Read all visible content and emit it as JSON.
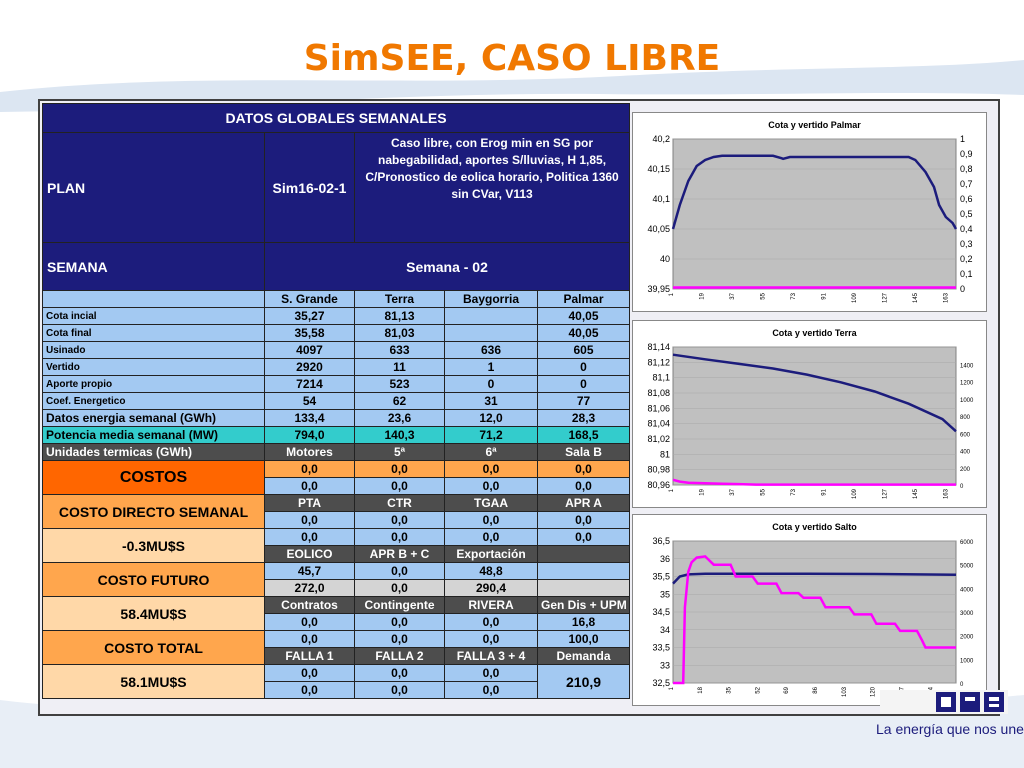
{
  "title": "SimSEE, CASO LIBRE",
  "table": {
    "header": "DATOS GLOBALES SEMANALES",
    "plan_label": "PLAN",
    "plan_value": "Sim16-02-1",
    "plan_desc": "Caso libre, con  Erog min en SG por nabegabilidad, aportes S/lluvias, H 1,85, C/Pronostico de eolica horario, Politica 1360 sin CVar, V113",
    "semana_label": "SEMANA",
    "semana_value": "Semana - 02",
    "columns": [
      "S. Grande",
      "Terra",
      "Baygorria",
      "Palmar"
    ],
    "rows": [
      {
        "label": "Cota incial",
        "values": [
          "35,27",
          "81,13",
          "",
          "40,05"
        ]
      },
      {
        "label": "Cota final",
        "values": [
          "35,58",
          "81,03",
          "",
          "40,05"
        ]
      },
      {
        "label": "Usinado",
        "values": [
          "4097",
          "633",
          "636",
          "605"
        ]
      },
      {
        "label": "Vertido",
        "values": [
          "2920",
          "11",
          "1",
          "0"
        ]
      },
      {
        "label": "Aporte propio",
        "values": [
          "7214",
          "523",
          "0",
          "0"
        ]
      },
      {
        "label": "Coef. Energetico",
        "values": [
          "54",
          "62",
          "31",
          "77"
        ]
      }
    ],
    "energia_label": "Datos energia semanal  (GWh)",
    "energia_values": [
      "133,4",
      "23,6",
      "12,0",
      "28,3"
    ],
    "potencia_label": "Potencia media semanal (MW)",
    "potencia_values": [
      "794,0",
      "140,3",
      "71,2",
      "168,5"
    ],
    "termicas_label": "Unidades termicas (GWh)",
    "termicas_cols": [
      "Motores",
      "5ª",
      "6ª",
      "Sala B"
    ],
    "termicas_r1": [
      "0,0",
      "0,0",
      "0,0",
      "0,0"
    ],
    "termicas_r2": [
      "0,0",
      "0,0",
      "0,0",
      "0,0"
    ],
    "costos_label": "COSTOS",
    "costo_directo_label": "COSTO DIRECTO SEMANAL",
    "costo_directo_value": "-0.3MU$S",
    "costo_futuro_label": "COSTO FUTURO",
    "costo_futuro_value": "58.4MU$S",
    "costo_total_label": "COSTO TOTAL",
    "costo_total_value": "58.1MU$S",
    "g1_cols": [
      "PTA",
      "CTR",
      "TGAA",
      "APR A"
    ],
    "g1_r1": [
      "0,0",
      "0,0",
      "0,0",
      "0,0"
    ],
    "g1_r2": [
      "0,0",
      "0,0",
      "0,0",
      "0,0"
    ],
    "g2_cols": [
      "EOLICO",
      "APR B + C",
      "Exportación",
      ""
    ],
    "g2_r1": [
      "45,7",
      "0,0",
      "48,8",
      ""
    ],
    "g2_r2": [
      "272,0",
      "0,0",
      "290,4",
      ""
    ],
    "g3_cols": [
      "Contratos",
      "Contingente",
      "RIVERA",
      "Gen Dis + UPM"
    ],
    "g3_r1": [
      "0,0",
      "0,0",
      "0,0",
      "16,8"
    ],
    "g3_r2": [
      "0,0",
      "0,0",
      "0,0",
      "100,0"
    ],
    "g4_cols": [
      "FALLA 1",
      "FALLA 2",
      "FALLA 3 + 4",
      "Demanda"
    ],
    "g4_r1": [
      "0,0",
      "0,0",
      "0,0"
    ],
    "g4_r2": [
      "0,0",
      "0,0",
      "0,0"
    ],
    "demanda_value": "210,9"
  },
  "chart_data": [
    {
      "type": "line",
      "title": "Cota y vertido  Palmar",
      "ylim": [
        39.95,
        40.2
      ],
      "yticks": [
        "40,2",
        "40,15",
        "40,1",
        "40,05",
        "40",
        "39,95"
      ],
      "y2lim": [
        0,
        1
      ],
      "y2ticks": [
        "1",
        "0,9",
        "0,8",
        "0,7",
        "0,6",
        "0,5",
        "0,4",
        "0,3",
        "0,2",
        "0,1",
        "0"
      ],
      "xticks": [
        "1",
        "19",
        "37",
        "55",
        "73",
        "91",
        "109",
        "127",
        "145",
        "163"
      ],
      "xmax": 168,
      "series": [
        {
          "color": "#1c1c7c",
          "axis": "left",
          "x": [
            1,
            5,
            10,
            15,
            20,
            25,
            30,
            38,
            45,
            60,
            65,
            66,
            70,
            80,
            100,
            120,
            140,
            144,
            150,
            155,
            158,
            162,
            166,
            168
          ],
          "y": [
            40.05,
            40.09,
            40.13,
            40.155,
            40.165,
            40.17,
            40.172,
            40.172,
            40.172,
            40.172,
            40.168,
            40.167,
            40.17,
            40.17,
            40.17,
            40.17,
            40.17,
            40.165,
            40.145,
            40.12,
            40.09,
            40.07,
            40.06,
            40.05
          ]
        },
        {
          "color": "#ff00ff",
          "axis": "right",
          "x": [
            1,
            168
          ],
          "y": [
            0.01,
            0.01
          ]
        }
      ]
    },
    {
      "type": "line",
      "title": "Cota y vertido  Terra",
      "ylim": [
        80.96,
        81.14
      ],
      "yticks": [
        "81,14",
        "81,12",
        "81,1",
        "81,08",
        "81,06",
        "81,04",
        "81,02",
        "81",
        "80,98",
        "80,96"
      ],
      "y2lim": [
        0,
        1600
      ],
      "y2ticks": [
        "1400",
        "1200",
        "1000",
        "800",
        "600",
        "400",
        "200",
        "0"
      ],
      "y2tickvals": [
        1400,
        1200,
        1000,
        800,
        600,
        400,
        200,
        0
      ],
      "xticks": [
        "1",
        "19",
        "37",
        "55",
        "73",
        "91",
        "109",
        "127",
        "145",
        "163"
      ],
      "xmax": 168,
      "series": [
        {
          "color": "#1c1c7c",
          "axis": "left",
          "x": [
            1,
            20,
            40,
            60,
            80,
            100,
            120,
            140,
            160,
            168
          ],
          "y": [
            81.13,
            81.124,
            81.118,
            81.112,
            81.104,
            81.094,
            81.082,
            81.066,
            81.046,
            81.03
          ]
        },
        {
          "color": "#ff00ff",
          "axis": "right",
          "x": [
            1,
            5,
            10,
            20,
            30,
            40,
            50,
            168
          ],
          "y": [
            60,
            40,
            25,
            20,
            15,
            10,
            5,
            5
          ]
        }
      ]
    },
    {
      "type": "line",
      "title": "Cota y vertido Salto",
      "ylim": [
        32.5,
        36.5
      ],
      "yticks": [
        "36,5",
        "36",
        "35,5",
        "35",
        "34,5",
        "34",
        "33,5",
        "33",
        "32,5"
      ],
      "y2lim": [
        0,
        6000
      ],
      "y2ticks": [
        "6000",
        "5000",
        "4000",
        "3000",
        "2000",
        "1000",
        "0"
      ],
      "xticks": [
        "1",
        "18",
        "35",
        "52",
        "69",
        "86",
        "103",
        "120",
        "137",
        "154"
      ],
      "xmax": 168,
      "series": [
        {
          "color": "#1c1c7c",
          "axis": "left",
          "x": [
            1,
            5,
            10,
            20,
            40,
            80,
            120,
            168
          ],
          "y": [
            35.3,
            35.5,
            35.56,
            35.58,
            35.58,
            35.58,
            35.57,
            35.55
          ]
        },
        {
          "color": "#ff00ff",
          "axis": "right",
          "x": [
            1,
            7,
            8,
            10,
            12,
            15,
            20,
            25,
            35,
            38,
            48,
            51,
            62,
            65,
            75,
            78,
            88,
            91,
            105,
            108,
            118,
            121,
            132,
            135,
            145,
            148,
            150,
            168
          ],
          "y": [
            0,
            0,
            3200,
            4700,
            5100,
            5300,
            5350,
            5000,
            5000,
            4500,
            4500,
            4200,
            4200,
            3800,
            3800,
            3600,
            3600,
            3200,
            3200,
            2900,
            2900,
            2500,
            2500,
            2200,
            2200,
            1800,
            1500,
            1500
          ]
        }
      ]
    }
  ],
  "footer": {
    "tagline": "La energía que nos une"
  }
}
